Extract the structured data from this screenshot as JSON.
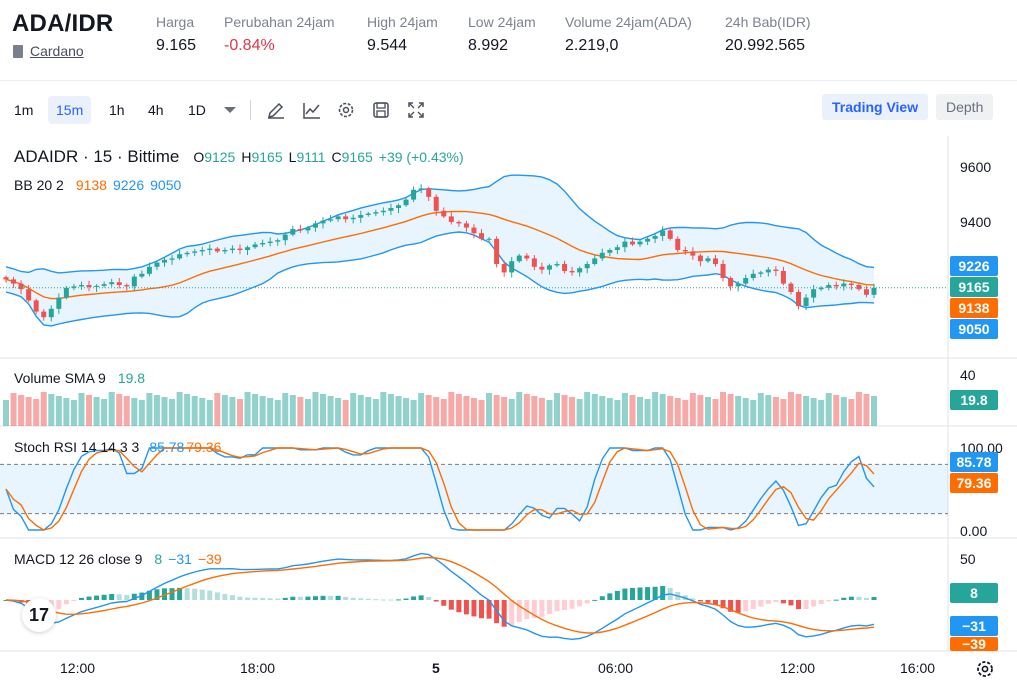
{
  "header": {
    "pair": "ADA/IDR",
    "asset_name": "Cardano",
    "stats": [
      {
        "label": "Harga",
        "value": "9.165",
        "negative": false
      },
      {
        "label": "Perubahan 24jam",
        "value": "-0.84%",
        "negative": true
      },
      {
        "label": "High 24jam",
        "value": "9.544",
        "negative": false
      },
      {
        "label": "Low 24jam",
        "value": "8.992",
        "negative": false
      },
      {
        "label": "Volume 24jam(ADA)",
        "value": "2.219,0",
        "negative": false
      },
      {
        "label": "24h Bab(IDR)",
        "value": "20.992.565",
        "negative": false
      }
    ]
  },
  "toolbar": {
    "timeframes": [
      "1m",
      "15m",
      "1h",
      "4h",
      "1D"
    ],
    "active_timeframe": "15m",
    "icons": [
      "chevron-down-icon",
      "pencil-icon",
      "line-chart-icon",
      "gear-icon",
      "save-icon",
      "fullscreen-icon"
    ],
    "views": [
      {
        "label": "Trading View",
        "active": true
      },
      {
        "label": "Depth",
        "active": false
      }
    ]
  },
  "main_legend": {
    "symbol": "ADAIDR · 15 · Bittime",
    "open_label": "O",
    "open": "9125",
    "high_label": "H",
    "high": "9165",
    "low_label": "L",
    "low": "9111",
    "close_label": "C",
    "close": "9165",
    "change": "+39 (+0.43%)"
  },
  "bb_legend": {
    "label": "BB 20 2",
    "basis": "9138",
    "upper": "9226",
    "lower": "9050"
  },
  "volume_legend": {
    "label": "Volume SMA 9",
    "value": "19.8"
  },
  "stoch_legend": {
    "label": "Stoch RSI 14 14 3 3",
    "k": "85.78",
    "d": "79.36"
  },
  "macd_legend": {
    "label": "MACD 12 26 close 9",
    "hist": "8",
    "macd": "−31",
    "signal": "−39"
  },
  "price_axis": {
    "ticks": [
      "9600",
      "9400"
    ],
    "badges": {
      "upper": "9226",
      "price": "9165",
      "basis": "9138",
      "lower": "9050"
    }
  },
  "volume_axis": {
    "tick": "40",
    "badge": "19.8"
  },
  "stoch_axis": {
    "ticks": [
      "100.00",
      "0.00"
    ],
    "badges": {
      "k": "85.78",
      "d": "79.36"
    }
  },
  "macd_axis": {
    "tick": "50",
    "badges": {
      "hist": "8",
      "macd": "−31",
      "signal": "−39"
    }
  },
  "time_axis": {
    "ticks": [
      "12:00",
      "18:00",
      "5",
      "06:00",
      "12:00",
      "16:00"
    ]
  },
  "colors": {
    "up": "#26a69a",
    "down": "#ef5350",
    "band": "#2196f3",
    "basis": "#ff6d00",
    "accent": "#2962ff",
    "neg_text": "#e0364a"
  },
  "chart_data": {
    "type": "candlestick",
    "symbol": "ADAIDR",
    "interval": "15",
    "y_range": [
      8930,
      9650
    ],
    "closes": [
      9195,
      9180,
      9160,
      9120,
      9080,
      9060,
      9090,
      9130,
      9165,
      9170,
      9175,
      9168,
      9172,
      9178,
      9185,
      9175,
      9170,
      9205,
      9215,
      9240,
      9255,
      9265,
      9270,
      9285,
      9290,
      9295,
      9300,
      9305,
      9295,
      9300,
      9305,
      9300,
      9310,
      9320,
      9325,
      9330,
      9335,
      9355,
      9375,
      9370,
      9380,
      9395,
      9405,
      9410,
      9420,
      9410,
      9415,
      9425,
      9430,
      9435,
      9440,
      9450,
      9460,
      9480,
      9515,
      9520,
      9490,
      9440,
      9420,
      9400,
      9395,
      9380,
      9360,
      9340,
      9340,
      9250,
      9220,
      9260,
      9280,
      9270,
      9240,
      9230,
      9245,
      9250,
      9225,
      9220,
      9235,
      9250,
      9270,
      9290,
      9300,
      9310,
      9330,
      9320,
      9330,
      9340,
      9350,
      9370,
      9340,
      9300,
      9295,
      9280,
      9260,
      9270,
      9250,
      9200,
      9170,
      9180,
      9200,
      9215,
      9220,
      9230,
      9225,
      9180,
      9150,
      9100,
      9130,
      9160,
      9165,
      9175,
      9170,
      9180,
      9175,
      9160,
      9140,
      9165
    ]
  }
}
